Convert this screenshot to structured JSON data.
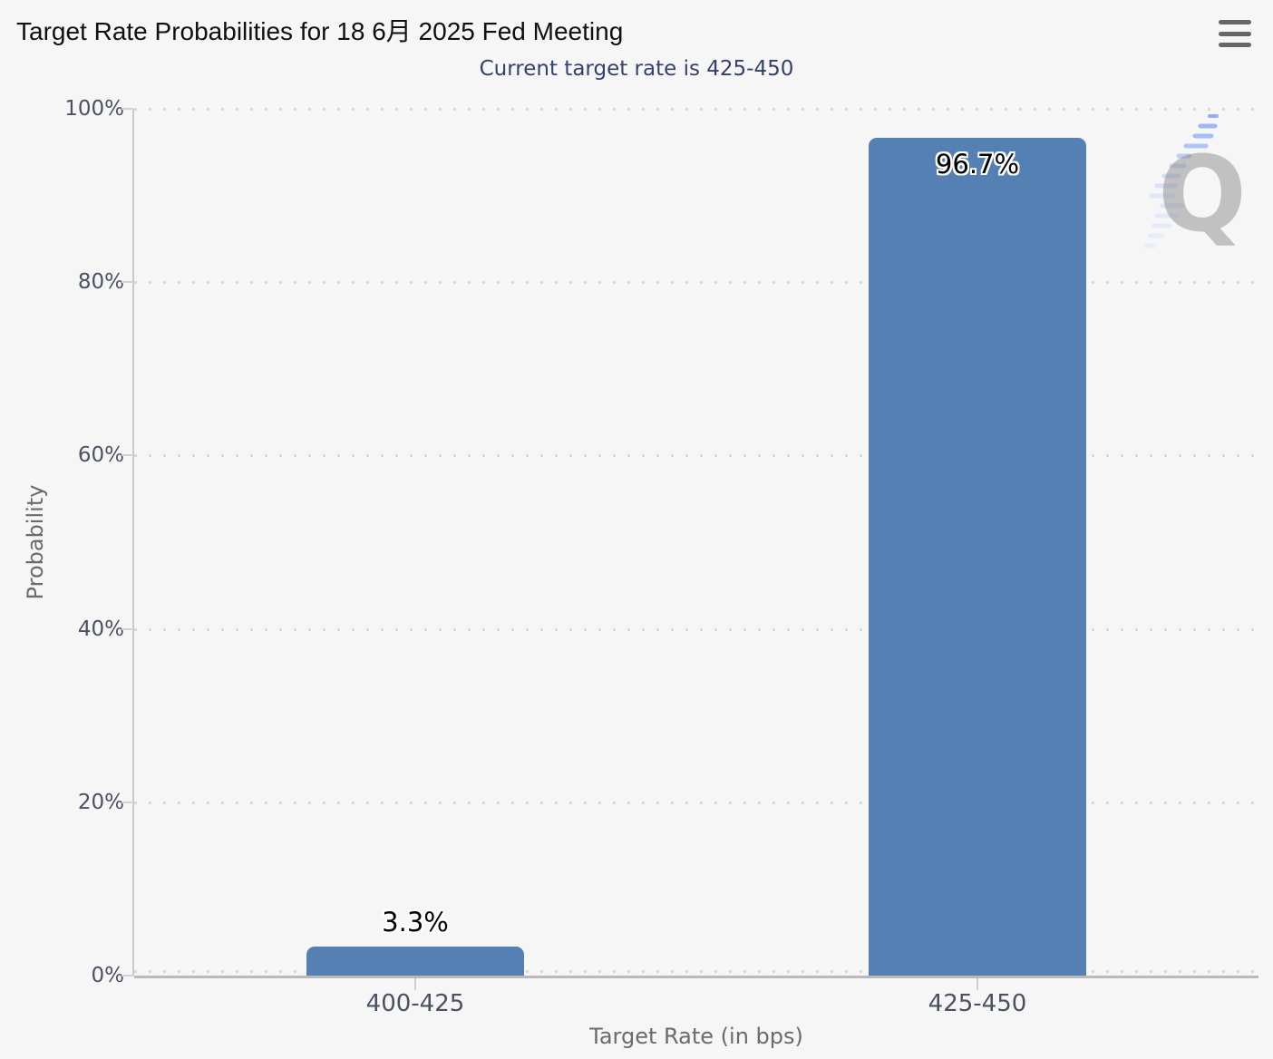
{
  "header": {
    "menu_icon": "hamburger-menu"
  },
  "chart_data": {
    "type": "bar",
    "title": "Target Rate Probabilities for 18 6月 2025 Fed Meeting",
    "subtitle": "Current target rate is 425-450",
    "categories": [
      "400-425",
      "425-450"
    ],
    "values": [
      3.3,
      96.7
    ],
    "data_labels": [
      "3.3%",
      "96.7%"
    ],
    "xlabel": "Target Rate (in bps)",
    "ylabel": "Probability",
    "ylim": [
      0,
      100
    ],
    "ytick_labels": [
      "0%",
      "20%",
      "40%",
      "60%",
      "80%",
      "100%"
    ],
    "grid": "dotted-horizontal",
    "legend": "none",
    "bar_color": "#5480b4",
    "watermark_letter": "Q"
  }
}
